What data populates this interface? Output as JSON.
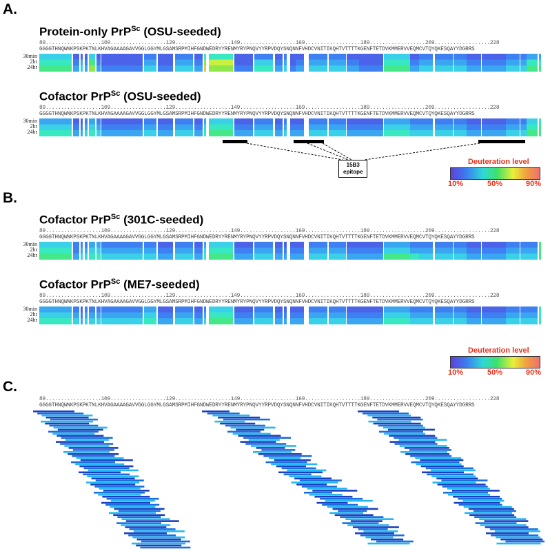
{
  "colors": {
    "d10": "#4a63e8",
    "d15": "#3e7ff2",
    "d20": "#3aa5f0",
    "d25": "#3ad0e8",
    "d30": "#38e8c0",
    "d35": "#44e888",
    "d45": "#8ee84a",
    "d55": "#c8f040",
    "d65": "#f0c048",
    "deep": "#3348d8",
    "peptide_dark": "#1a3fc0",
    "peptide_mid": "#1a6ee0",
    "peptide_light": "#22b8f0"
  },
  "sequence": "GGGGTHNQWNKPSKPKTNLKHVAGAAAAGAVVGGLGGYMLGSAMSRPMIHFGNDWEDRYYRENMYRYPNQVYYRPVDQYSNQNNFVHDCVNITIKQHTVTTTTKGENFTETDVKMMERVVEQMCVTQYQKESQAYYDGRRS",
  "ruler": "89..................109..................129..................149..................169..................189..................209..................228",
  "time_labels": [
    "30min",
    "2hr",
    "24hr"
  ],
  "panels": {
    "A": {
      "label": "A.",
      "title1_main": "Protein-only PrP",
      "title1_sup": "Sc",
      "title1_tail": " (OSU-seeded)",
      "title2_main": "Cofactor PrP",
      "title2_sup": "Sc",
      "title2_tail": " (OSU-seeded)",
      "epitope_line1": "15B3",
      "epitope_line2": "epitope"
    },
    "B": {
      "label": "B.",
      "title1_main": "Cofactor PrP",
      "title1_sup": "Sc",
      "title1_tail": " (301C-seeded)",
      "title2_main": "Cofactor PrP",
      "title2_sup": "Sc",
      "title2_tail": " (ME7-seeded)"
    },
    "C": {
      "label": "C."
    }
  },
  "legend": {
    "title": "Deuteration level",
    "ticks": [
      "10%",
      "50%",
      "90%"
    ]
  },
  "heatmaps": [
    {
      "name": "protein-only-osu",
      "rows": [
        [
          "d25",
          "d10",
          "d10",
          "d10",
          "d25",
          "d10",
          "d10",
          "d15",
          "d10",
          "d15",
          "d10",
          "d30",
          "d30",
          "d10",
          "d15",
          "d10",
          "d15",
          "d10",
          "d10",
          "d15",
          "d15",
          "d10",
          "d10",
          "d25",
          "d10",
          "d15",
          "d15",
          "d15",
          "d10",
          "d10",
          "d10",
          "d15",
          "d15",
          "d20",
          "d20"
        ],
        [
          "d30",
          "d15",
          "d20",
          "d15",
          "d35",
          "d15",
          "d10",
          "d20",
          "d10",
          "d20",
          "d15",
          "d45",
          "d55",
          "d10",
          "d25",
          "d15",
          "d20",
          "d10",
          "d15",
          "d20",
          "d20",
          "d15",
          "d10",
          "d30",
          "d15",
          "d20",
          "d20",
          "d20",
          "d15",
          "d15",
          "d15",
          "d20",
          "d20",
          "d30",
          "d30"
        ],
        [
          "d35",
          "d20",
          "d25",
          "d20",
          "d45",
          "d20",
          "d15",
          "d25",
          "d15",
          "d25",
          "d20",
          "d65",
          "d45",
          "d15",
          "d30",
          "d20",
          "d25",
          "d15",
          "d20",
          "d25",
          "d25",
          "d20",
          "d15",
          "d35",
          "d20",
          "d25",
          "d25",
          "d25",
          "d20",
          "d20",
          "d20",
          "d25",
          "d25",
          "d35",
          "d35"
        ]
      ]
    },
    {
      "name": "cofactor-osu",
      "rows": [
        [
          "d20",
          "d10",
          "d10",
          "d15",
          "d20",
          "d15",
          "d10",
          "d15",
          "d10",
          "d15",
          "d10",
          "d20",
          "d25",
          "d10",
          "d15",
          "d10",
          "d15",
          "d10",
          "d10",
          "d15",
          "d15",
          "d10",
          "d10",
          "d20",
          "d15",
          "d15",
          "d15",
          "d15",
          "d10",
          "d10",
          "d10",
          "d15",
          "d15",
          "d25",
          "d30"
        ],
        [
          "d25",
          "d15",
          "d15",
          "d20",
          "d25",
          "d20",
          "d15",
          "d20",
          "d15",
          "d20",
          "d15",
          "d25",
          "d30",
          "d15",
          "d20",
          "d15",
          "d20",
          "d15",
          "d15",
          "d20",
          "d20",
          "d15",
          "d15",
          "d25",
          "d20",
          "d20",
          "d20",
          "d20",
          "d15",
          "d15",
          "d15",
          "d20",
          "d20",
          "d30",
          "d35"
        ],
        [
          "d30",
          "d20",
          "d20",
          "d25",
          "d30",
          "d25",
          "d20",
          "d25",
          "d20",
          "d25",
          "d20",
          "d30",
          "d35",
          "d20",
          "d25",
          "d20",
          "d25",
          "d20",
          "d20",
          "d25",
          "d25",
          "d20",
          "d20",
          "d30",
          "d25",
          "d25",
          "d25",
          "d25",
          "d20",
          "d20",
          "d20",
          "d25",
          "d25",
          "d35",
          "d35"
        ]
      ]
    },
    {
      "name": "cofactor-301c",
      "rows": [
        [
          "d25",
          "d15",
          "d15",
          "d15",
          "d20",
          "d20",
          "d15",
          "d15",
          "d10",
          "d15",
          "d10",
          "d20",
          "d25",
          "d10",
          "d15",
          "d10",
          "d10",
          "d10",
          "d10",
          "d15",
          "d15",
          "d10",
          "d10",
          "d20",
          "d15",
          "d15",
          "d15",
          "d15",
          "d10",
          "d10",
          "d10",
          "d15",
          "d15",
          "d15",
          "d35"
        ],
        [
          "d30",
          "d15",
          "d20",
          "d20",
          "d25",
          "d25",
          "d20",
          "d20",
          "d15",
          "d20",
          "d15",
          "d25",
          "d30",
          "d15",
          "d20",
          "d15",
          "d15",
          "d15",
          "d15",
          "d20",
          "d20",
          "d15",
          "d15",
          "d25",
          "d20",
          "d20",
          "d20",
          "d20",
          "d15",
          "d15",
          "d15",
          "d20",
          "d20",
          "d20",
          "d35"
        ],
        [
          "d35",
          "d20",
          "d25",
          "d25",
          "d30",
          "d30",
          "d25",
          "d25",
          "d20",
          "d25",
          "d20",
          "d30",
          "d35",
          "d20",
          "d25",
          "d20",
          "d20",
          "d20",
          "d20",
          "d25",
          "d25",
          "d20",
          "d20",
          "d35",
          "d30",
          "d25",
          "d25",
          "d25",
          "d20",
          "d20",
          "d20",
          "d25",
          "d25",
          "d25",
          "d35"
        ]
      ]
    },
    {
      "name": "cofactor-me7",
      "rows": [
        [
          "d20",
          "d15",
          "d10",
          "d15",
          "d15",
          "d15",
          "d15",
          "d20",
          "d10",
          "d15",
          "d10",
          "d15",
          "d25",
          "d10",
          "d15",
          "d10",
          "d10",
          "d10",
          "d10",
          "d15",
          "d15",
          "d10",
          "d10",
          "d20",
          "d15",
          "d15",
          "d15",
          "d15",
          "d10",
          "d10",
          "d10",
          "d15",
          "d15",
          "d15",
          "d30"
        ],
        [
          "d25",
          "d20",
          "d15",
          "d20",
          "d20",
          "d20",
          "d20",
          "d25",
          "d15",
          "d20",
          "d15",
          "d20",
          "d30",
          "d15",
          "d20",
          "d15",
          "d15",
          "d15",
          "d15",
          "d20",
          "d20",
          "d15",
          "d15",
          "d25",
          "d20",
          "d20",
          "d20",
          "d20",
          "d15",
          "d15",
          "d15",
          "d20",
          "d20",
          "d20",
          "d30"
        ],
        [
          "d30",
          "d25",
          "d20",
          "d25",
          "d25",
          "d25",
          "d25",
          "d30",
          "d20",
          "d25",
          "d20",
          "d25",
          "d35",
          "d20",
          "d25",
          "d20",
          "d20",
          "d20",
          "d20",
          "d25",
          "d25",
          "d20",
          "d20",
          "d30",
          "d25",
          "d25",
          "d25",
          "d25",
          "d20",
          "d20",
          "d20",
          "d25",
          "d25",
          "d25",
          "d30"
        ]
      ]
    }
  ]
}
